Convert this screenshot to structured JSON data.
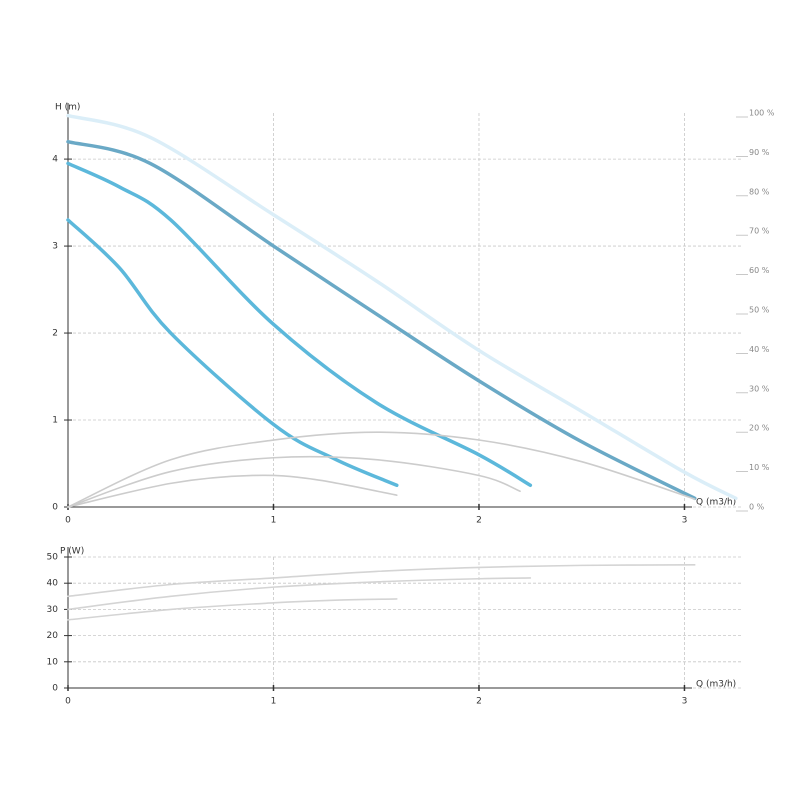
{
  "chart_data": [
    {
      "type": "line",
      "ylabel": "H (m)",
      "xlabel": "Q (m3/h)",
      "xlim": [
        0,
        3.28
      ],
      "xticks": [
        0,
        1,
        2,
        3
      ],
      "ylim": [
        0,
        4.53
      ],
      "yticks": [
        0,
        1,
        2,
        3,
        4
      ],
      "y2lim": [
        0,
        100
      ],
      "y2ticks": [
        {
          "value": 0,
          "label": "0 %"
        },
        {
          "value": 10,
          "label": "10 %"
        },
        {
          "value": 20,
          "label": "20 %"
        },
        {
          "value": 30,
          "label": "30 %"
        },
        {
          "value": 40,
          "label": "40 %"
        },
        {
          "value": 50,
          "label": "50 %"
        },
        {
          "value": 60,
          "label": "60 %"
        },
        {
          "value": 70,
          "label": "70 %"
        },
        {
          "value": 80,
          "label": "80 %"
        },
        {
          "value": 90,
          "label": "90 %"
        },
        {
          "value": 100,
          "label": "100 %"
        }
      ],
      "grid": true,
      "series": [
        {
          "color": "#dbeef8",
          "x": [
            0,
            0.4,
            1,
            1.5,
            2,
            2.5,
            3,
            3.25
          ],
          "values": [
            4.5,
            4.25,
            3.36,
            2.6,
            1.8,
            1.1,
            0.4,
            0.1
          ]
        },
        {
          "color": "#6aa9c6",
          "x": [
            0,
            0.4,
            1,
            1.5,
            2,
            2.5,
            3.05
          ],
          "values": [
            4.2,
            3.95,
            3.0,
            2.22,
            1.45,
            0.75,
            0.1
          ]
        },
        {
          "color": "#5cb8db",
          "x": [
            0,
            0.25,
            0.5,
            1,
            1.5,
            2,
            2.25
          ],
          "values": [
            3.95,
            3.68,
            3.3,
            2.1,
            1.2,
            0.6,
            0.25
          ]
        },
        {
          "color": "#5cb8db",
          "x": [
            0,
            0.25,
            0.5,
            1,
            1.3,
            1.6
          ],
          "values": [
            3.3,
            2.75,
            2.0,
            0.95,
            0.55,
            0.25
          ]
        },
        {
          "color": "#cccccc",
          "axis": "y2",
          "x": [
            0,
            0.5,
            1,
            1.5,
            2,
            2.5,
            3.05
          ],
          "values": [
            0,
            12,
            17,
            19,
            17,
            11.5,
            2
          ]
        },
        {
          "color": "#cccccc",
          "axis": "y2",
          "x": [
            0,
            0.5,
            1,
            1.5,
            2,
            2.2
          ],
          "values": [
            0,
            9,
            12.5,
            12,
            8,
            4
          ]
        },
        {
          "color": "#cccccc",
          "axis": "y2",
          "x": [
            0,
            0.5,
            0.9,
            1.2,
            1.6
          ],
          "values": [
            0,
            6,
            8,
            7,
            3
          ]
        }
      ]
    },
    {
      "type": "line",
      "ylabel": "P (W)",
      "xlabel": "Q (m3/h)",
      "xlim": [
        0,
        3.28
      ],
      "xticks": [
        0,
        1,
        2,
        3
      ],
      "ylim": [
        0,
        50
      ],
      "yticks": [
        0,
        10,
        20,
        30,
        40,
        50
      ],
      "grid": true,
      "series": [
        {
          "color": "#d4d4d4",
          "x": [
            0,
            0.5,
            1,
            1.5,
            2,
            2.5,
            3.05
          ],
          "values": [
            35,
            39.5,
            42,
            44.5,
            46,
            46.8,
            47
          ]
        },
        {
          "color": "#d4d4d4",
          "x": [
            0,
            0.5,
            1,
            1.5,
            2,
            2.25
          ],
          "values": [
            30,
            35,
            38.5,
            40.5,
            41.7,
            42
          ]
        },
        {
          "color": "#d4d4d4",
          "x": [
            0,
            0.5,
            1,
            1.3,
            1.6
          ],
          "values": [
            26,
            30,
            32.5,
            33.5,
            34
          ]
        }
      ]
    }
  ]
}
